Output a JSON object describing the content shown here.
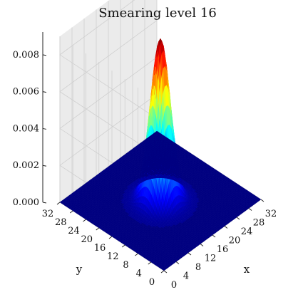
{
  "chart_data": {
    "type": "surface3d",
    "title": "Smearing level 16",
    "xlabel": "x",
    "ylabel": "y",
    "zlabel": "",
    "xlim": [
      0,
      32
    ],
    "ylim": [
      0,
      32
    ],
    "zlim": [
      0,
      0.009
    ],
    "x_ticks": [
      "0",
      "4",
      "8",
      "12",
      "16",
      "20",
      "24",
      "28",
      "32"
    ],
    "y_ticks": [
      "0",
      "4",
      "8",
      "12",
      "16",
      "20",
      "24",
      "28",
      "32"
    ],
    "z_ticks": [
      "0.000",
      "0.002",
      "0.004",
      "0.006",
      "0.008"
    ],
    "peak": {
      "x": 16,
      "y": 16,
      "z": 0.0088
    },
    "spread_sigma": 2.3,
    "colormap": "jet",
    "grid": true
  }
}
